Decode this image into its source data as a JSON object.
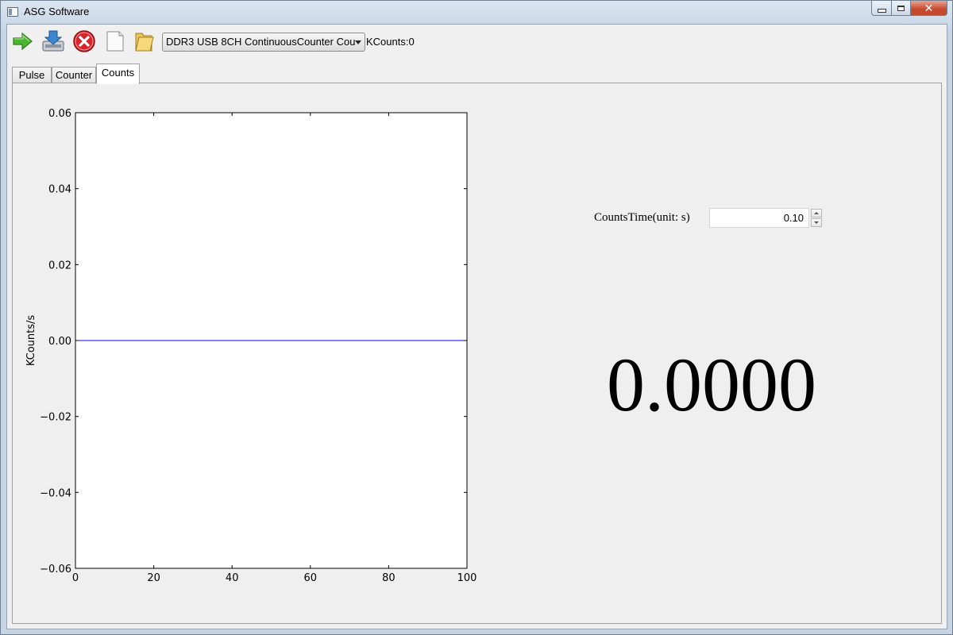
{
  "window": {
    "title": "ASG Software",
    "close_glyph": "✕"
  },
  "toolbar": {
    "icons": [
      "run-arrow-icon",
      "download-icon",
      "stop-icon",
      "new-document-icon",
      "open-folder-icon"
    ],
    "device_select": "DDR3 USB 8CH ContinuousCounter Cou",
    "kcounts_text": "KCounts:0"
  },
  "tabs": [
    {
      "label": "Pulse"
    },
    {
      "label": "Counter"
    },
    {
      "label": "Counts",
      "active": true
    }
  ],
  "counts": {
    "time_label": "CountsTime(unit: s)",
    "time_value": "0.10",
    "display_value": "0.0000"
  },
  "chart_data": {
    "type": "line",
    "title": "",
    "xlabel": "",
    "ylabel": "KCounts/s",
    "xlim": [
      0,
      100
    ],
    "ylim": [
      -0.06,
      0.06
    ],
    "xticks": [
      0,
      20,
      40,
      60,
      80,
      100
    ],
    "yticks": [
      -0.06,
      -0.04,
      -0.02,
      0.0,
      0.02,
      0.04,
      0.06
    ],
    "xtick_labels": [
      "0",
      "20",
      "40",
      "60",
      "80",
      "100"
    ],
    "ytick_labels": [
      "−0.06",
      "−0.04",
      "−0.02",
      "0.00",
      "0.02",
      "0.04",
      "0.06"
    ],
    "series": [
      {
        "color": "#0000ff",
        "x": [
          0,
          100
        ],
        "y": [
          0,
          0
        ]
      }
    ],
    "grid": false,
    "colors": {
      "line": "#0000ff",
      "axes": "#000000",
      "background": "#ffffff"
    }
  }
}
